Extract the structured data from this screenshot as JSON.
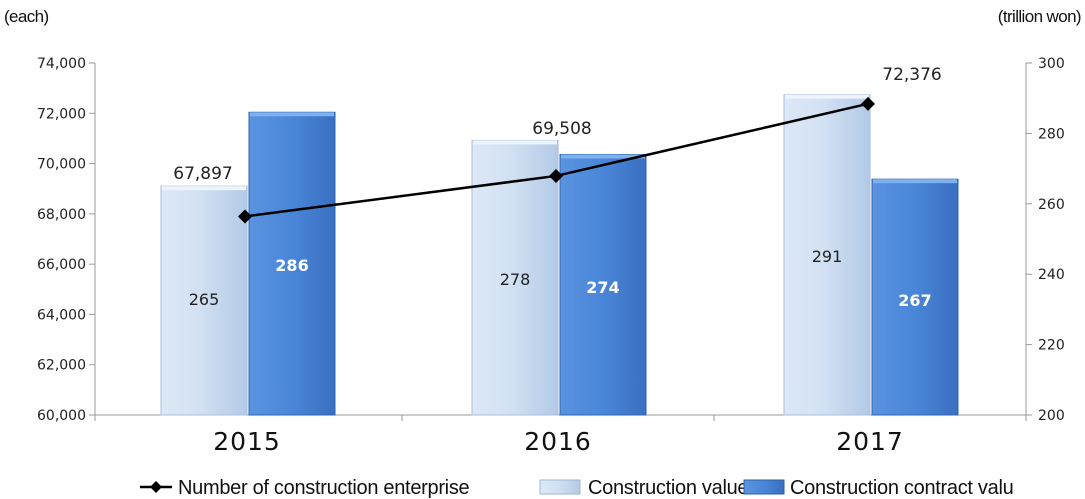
{
  "chart_data": {
    "type": "bar",
    "categories": [
      "2015",
      "2016",
      "2017"
    ],
    "left_axis": {
      "unit_label": "(each)",
      "ylim": [
        60000,
        74000
      ],
      "ticks": [
        "60,000",
        "62,000",
        "64,000",
        "66,000",
        "68,000",
        "70,000",
        "72,000",
        "74,000"
      ]
    },
    "right_axis": {
      "unit_label": "(trillion won)",
      "ylim": [
        200,
        300
      ],
      "ticks": [
        "200",
        "220",
        "240",
        "260",
        "280",
        "300"
      ]
    },
    "series": [
      {
        "name": "Construction value",
        "kind": "bar",
        "axis": "right",
        "color": "#c5d9f0",
        "values": [
          265,
          278,
          291
        ],
        "labels": [
          "265",
          "278",
          "291"
        ]
      },
      {
        "name": "Construction contract valu",
        "kind": "bar",
        "axis": "right",
        "color": "#4a86d8",
        "values": [
          286,
          274,
          267
        ],
        "labels": [
          "286",
          "274",
          "267"
        ]
      },
      {
        "name": "Number of construction enterprise",
        "kind": "line",
        "axis": "left",
        "color": "#000000",
        "values": [
          67897,
          69508,
          72376
        ],
        "labels": [
          "67,897",
          "69,508",
          "72,376"
        ]
      }
    ],
    "legend_position": "bottom",
    "grid": false
  }
}
